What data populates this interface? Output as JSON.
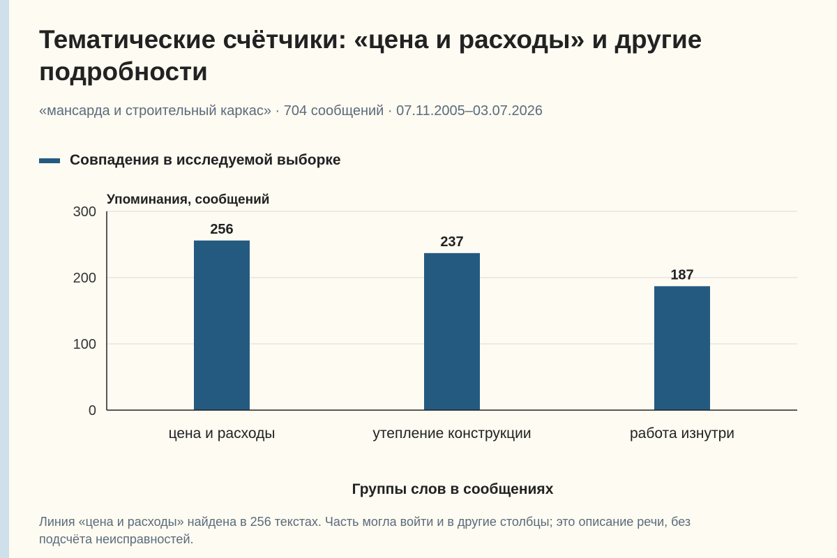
{
  "title": "Тематические счётчики: «цена и расходы» и другие подробности",
  "subtitle": "«мансарда и строительный каркас» · 704 сообщений · 07.11.2005–03.07.2026",
  "footnote": "Линия «цена и расходы» найдена в 256 текстах. Часть могла войти и в другие столбцы; это описание речи, без подсчёта неисправностей.",
  "colors": {
    "bar": "#245a80",
    "grid": "#d9d9d9",
    "axis": "#222222",
    "background": "#fdfbf2"
  },
  "chart_data": {
    "type": "bar",
    "categories": [
      "цена и расходы",
      "утепление конструкции",
      "работа изнутри"
    ],
    "series": [
      {
        "name": "Совпадения в исследуемой выборке",
        "values": [
          256,
          237,
          187
        ]
      }
    ],
    "ylabel": "Упоминания, сообщений",
    "xlabel": "Группы слов в сообщениях",
    "ylim": [
      0,
      300
    ],
    "yticks": [
      0,
      100,
      200,
      300
    ],
    "grid": true,
    "legend_position": "top-left",
    "data_labels": true
  }
}
